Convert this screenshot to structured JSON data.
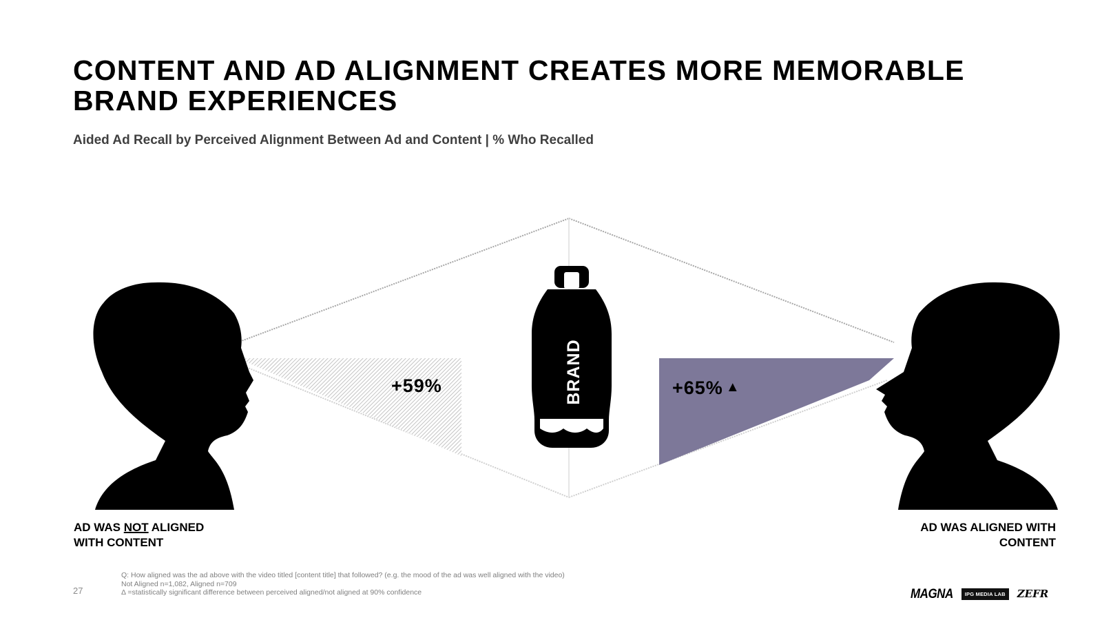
{
  "header": {
    "title": "CONTENT AND AD ALIGNMENT CREATES MORE MEMORABLE BRAND EXPERIENCES",
    "subtitle": "Aided Ad Recall by Perceived Alignment Between Ad and Content | % Who Recalled"
  },
  "bottle": {
    "label": "BRAND"
  },
  "left": {
    "value_label": "+59%",
    "value": 59,
    "caption_part1": "AD WAS ",
    "caption_emph": "NOT",
    "caption_part2": " ALIGNED",
    "caption_line2": "WITH CONTENT",
    "color": "#d9d9d9"
  },
  "right": {
    "value_label": "+65%",
    "value": 65,
    "significance_marker": "▲",
    "caption_line1": "AD WAS ALIGNED WITH",
    "caption_line2": "CONTENT",
    "color": "#7d7899"
  },
  "footnotes": {
    "question": "Q: How aligned was the ad above with the video titled [content title] that followed? (e.g. the mood of the ad was well aligned with the video)",
    "sample": "Not Aligned n=1,082, Aligned n=709",
    "significance": "Δ =statistically significant difference between perceived aligned/not aligned at 90% confidence"
  },
  "page_number": "27",
  "logos": {
    "magna": "MAGNA",
    "ipg": "IPG MEDIA LAB",
    "zefr": "ZEFR"
  }
}
